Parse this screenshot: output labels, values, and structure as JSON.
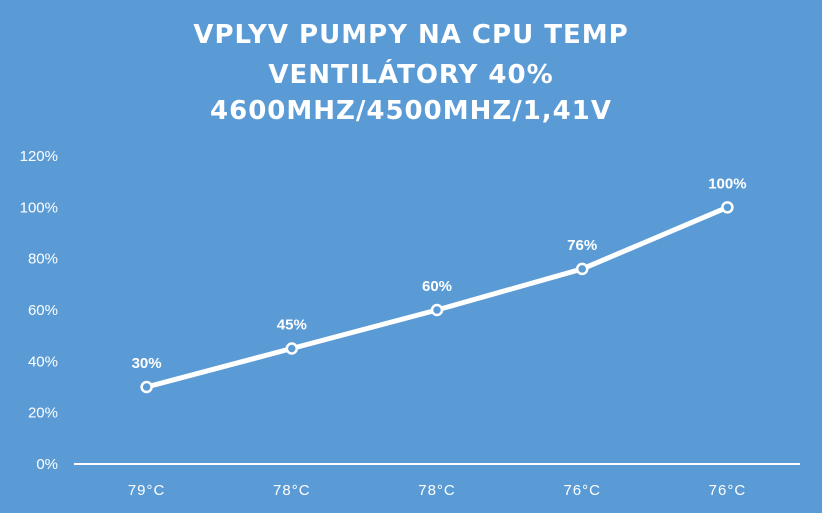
{
  "chart_data": {
    "type": "line",
    "title": [
      "VPLYV PUMPY NA CPU TEMP",
      "VENTILÁTORY  40%",
      "4600MHZ/4500MHZ/1,41V"
    ],
    "categories": [
      "79°C",
      "78°C",
      "78°C",
      "76°C",
      "76°C"
    ],
    "series": [
      {
        "values": [
          30,
          45,
          60,
          76,
          100
        ]
      }
    ],
    "data_labels": [
      "30%",
      "45%",
      "60%",
      "76%",
      "100%"
    ],
    "ylim": [
      0,
      120
    ],
    "yticks": [
      "0%",
      "20%",
      "40%",
      "60%",
      "80%",
      "100%",
      "120%"
    ],
    "ytick_values": [
      0,
      20,
      40,
      60,
      80,
      100,
      120
    ],
    "grid": false,
    "drop_lines": true,
    "colors": {
      "background": "#5b9bd5",
      "line": "#ffffff",
      "text": "#ffffff"
    }
  }
}
